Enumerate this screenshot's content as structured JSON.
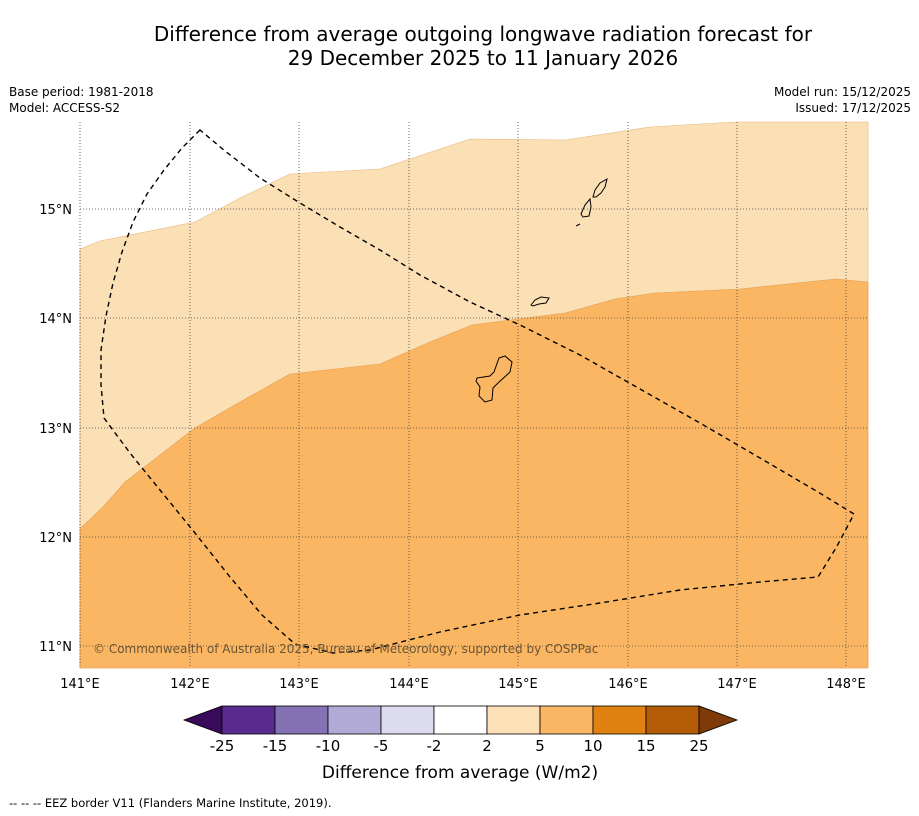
{
  "title": {
    "line1": "Difference from average outgoing longwave radiation forecast for",
    "line2": "29 December 2025 to 11 January 2026"
  },
  "meta": {
    "base_period": "Base period: 1981-2018",
    "model": "Model: ACCESS-S2",
    "model_run": "Model run: 15/12/2025",
    "issued": "Issued: 17/12/2025"
  },
  "map": {
    "lon_ticks": [
      "141°E",
      "142°E",
      "143°E",
      "144°E",
      "145°E",
      "146°E",
      "147°E",
      "148°E"
    ],
    "lat_ticks": [
      "15°N",
      "14°N",
      "13°N",
      "12°N",
      "11°N"
    ],
    "copyright": "© Commonwealth of Australia 2025, Bureau of Meteorology, supported by COSPPac",
    "colors": {
      "band_2_5": "#fbdfb5",
      "band_5_10": "#fab662",
      "ocean": "#ffffff"
    }
  },
  "colorbar": {
    "ticks": [
      "-25",
      "-15",
      "-10",
      "-5",
      "-2",
      "2",
      "5",
      "10",
      "15",
      "25"
    ],
    "colors": [
      "#3a0a5a",
      "#5b2a8e",
      "#8472b2",
      "#b1aad6",
      "#dcdcee",
      "#ffffff",
      "#fde0b6",
      "#fab662",
      "#e08212",
      "#b35b06",
      "#7d3a08"
    ],
    "label": "Difference from average (W/m2)"
  },
  "footnote": "--  --  -- EEZ border V11 (Flanders Marine Institute, 2019)."
}
